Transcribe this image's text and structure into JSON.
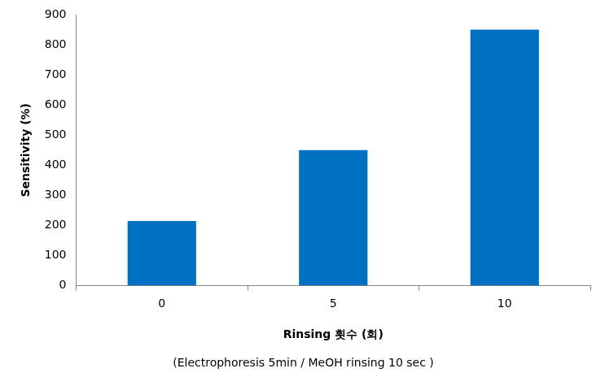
{
  "chart_data": {
    "type": "bar",
    "subtitle": "(Electrophoresis 5min / MeOH rinsing 10 sec )",
    "x_label": "Rinsing 횟수 (회)",
    "y_label": "Sensitivity (%)",
    "categories": [
      "0",
      "5",
      "10"
    ],
    "values": [
      215,
      450,
      850
    ],
    "color": "#0070c0",
    "ylim": [
      0,
      900
    ],
    "yticks": [
      0,
      100,
      200,
      300,
      400,
      500,
      600,
      700,
      800,
      900
    ],
    "grid": false
  }
}
